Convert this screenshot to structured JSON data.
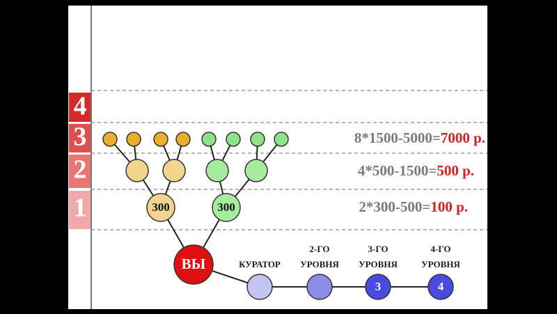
{
  "levels": [
    "4",
    "3",
    "2",
    "1"
  ],
  "rows": [
    {
      "formula": "8*1500-5000=",
      "result": "7000 р."
    },
    {
      "formula": "4*500-1500=",
      "result": "500 р."
    },
    {
      "formula": "2*300-500=",
      "result": "100 р."
    }
  ],
  "tree": {
    "left_label": "300",
    "right_label": "300",
    "root_label": "ВЫ"
  },
  "chain": [
    {
      "label": [
        "КУРАТОР"
      ],
      "node": null
    },
    {
      "label": [
        "2-ГО",
        "УРОВНЯ"
      ],
      "node": null
    },
    {
      "label": [
        "3-ГО",
        "УРОВНЯ"
      ],
      "node": "3"
    },
    {
      "label": [
        "4-ГО",
        "УРОВНЯ"
      ],
      "node": "4"
    }
  ]
}
